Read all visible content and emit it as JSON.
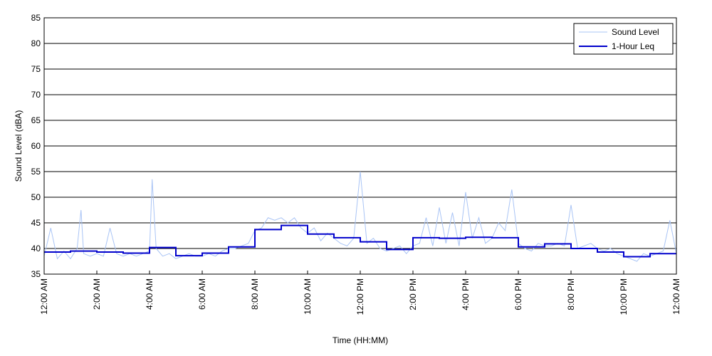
{
  "chart_data": {
    "type": "line",
    "title": "",
    "xlabel": "Time (HH:MM)",
    "ylabel": "Sound Level (dBA)",
    "xlim_hours": [
      0,
      24
    ],
    "ylim": [
      35,
      85
    ],
    "yticks": [
      35,
      40,
      45,
      50,
      55,
      60,
      65,
      70,
      75,
      80,
      85
    ],
    "xticks": [
      {
        "hour": 0,
        "label": "12:00 AM"
      },
      {
        "hour": 2,
        "label": "2:00 AM"
      },
      {
        "hour": 4,
        "label": "4:00 AM"
      },
      {
        "hour": 6,
        "label": "6:00 AM"
      },
      {
        "hour": 8,
        "label": "8:00 AM"
      },
      {
        "hour": 10,
        "label": "10:00 AM"
      },
      {
        "hour": 12,
        "label": "12:00 PM"
      },
      {
        "hour": 14,
        "label": "2:00 PM"
      },
      {
        "hour": 16,
        "label": "4:00 PM"
      },
      {
        "hour": 18,
        "label": "6:00 PM"
      },
      {
        "hour": 20,
        "label": "8:00 PM"
      },
      {
        "hour": 22,
        "label": "10:00 PM"
      },
      {
        "hour": 24,
        "label": "12:00 AM"
      }
    ],
    "grid": "horizontal",
    "legend_position": "top-right",
    "series": [
      {
        "name": "Sound Level",
        "color": "#a9c4f5",
        "style": "thin-line",
        "x_hours": [
          0,
          0.25,
          0.5,
          0.75,
          1,
          1.25,
          1.4,
          1.5,
          1.75,
          2,
          2.25,
          2.5,
          2.75,
          3,
          3.25,
          3.5,
          3.75,
          4,
          4.1,
          4.25,
          4.5,
          4.75,
          5,
          5.25,
          5.5,
          5.75,
          6,
          6.25,
          6.5,
          6.75,
          7,
          7.25,
          7.5,
          7.75,
          8,
          8.25,
          8.5,
          8.75,
          9,
          9.25,
          9.5,
          9.75,
          10,
          10.25,
          10.5,
          10.75,
          11,
          11.25,
          11.5,
          11.75,
          12,
          12.25,
          12.5,
          12.75,
          13,
          13.25,
          13.5,
          13.75,
          14,
          14.25,
          14.5,
          14.75,
          15,
          15.25,
          15.5,
          15.75,
          16,
          16.25,
          16.5,
          16.75,
          17,
          17.25,
          17.5,
          17.75,
          18,
          18.25,
          18.5,
          18.75,
          19,
          19.25,
          19.5,
          19.75,
          20,
          20.25,
          20.5,
          20.75,
          21,
          21.25,
          21.5,
          21.75,
          22,
          22.25,
          22.5,
          22.75,
          23,
          23.25,
          23.5,
          23.75,
          24
        ],
        "values": [
          38.5,
          44,
          38,
          39.5,
          38,
          40,
          47.5,
          39,
          38.5,
          39,
          38.5,
          44,
          39,
          38.5,
          39,
          38.5,
          39,
          39.5,
          53.5,
          40,
          38.5,
          39,
          38,
          38.5,
          39,
          38.5,
          38.5,
          39,
          38.5,
          39.5,
          40,
          40,
          40.5,
          41,
          43.5,
          44,
          46,
          45.5,
          46,
          45,
          46,
          44,
          43,
          44,
          41.5,
          43,
          42,
          41,
          40.5,
          42,
          55,
          41,
          42,
          40,
          39.5,
          40,
          40.5,
          39,
          40.5,
          41,
          46,
          40.5,
          48,
          41,
          47,
          40.5,
          51,
          42,
          46,
          41,
          42,
          45,
          43.5,
          51.5,
          41,
          40,
          39.5,
          41,
          40.5,
          40.5,
          41,
          40.5,
          48.5,
          40,
          40.5,
          41,
          40,
          39.5,
          40,
          39,
          38.5,
          38,
          37.5,
          39,
          38.5,
          39,
          39.5,
          45.5,
          39
        ]
      },
      {
        "name": "1-Hour Leq",
        "color": "#0000cc",
        "style": "step",
        "x_hours": [
          0,
          1,
          2,
          3,
          4,
          5,
          6,
          7,
          8,
          9,
          10,
          11,
          12,
          13,
          14,
          15,
          16,
          17,
          18,
          19,
          20,
          21,
          22,
          23
        ],
        "values": [
          39.3,
          39.5,
          39.3,
          39.1,
          40.2,
          38.6,
          39.1,
          40.3,
          43.7,
          44.5,
          42.8,
          42.1,
          41.3,
          39.8,
          42.1,
          42.0,
          42.2,
          42.1,
          40.3,
          40.9,
          40.0,
          39.3,
          38.4,
          39.0
        ]
      }
    ]
  }
}
